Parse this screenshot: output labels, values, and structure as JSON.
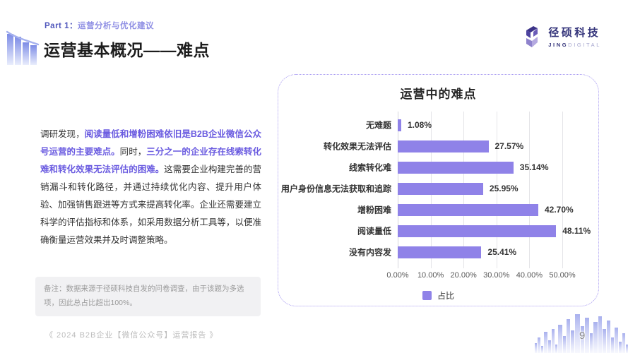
{
  "header": {
    "kicker_label": "Part 1：",
    "kicker_text": "运营分析与优化建议",
    "title": "运营基本概况——难点"
  },
  "logo": {
    "name_cn": "径硕科技",
    "name_en_bold": "JING",
    "name_en_light": "DIGITAL"
  },
  "paragraph": {
    "segments": [
      {
        "text": "调研发现，",
        "highlight": false
      },
      {
        "text": "阅读量低和增粉困难依旧是B2B企业微信公众号运营的主要难点。",
        "highlight": true
      },
      {
        "text": "同时，",
        "highlight": false
      },
      {
        "text": "三分之一的企业存在线索转化难和转化效果无法评估的困难。",
        "highlight": true
      },
      {
        "text": "这需要企业构建完善的营销漏斗和转化路径，并通过持续优化内容、提升用户体验、加强销售跟进等方式来提高转化率。企业还需要建立科学的评估指标和体系，如采用数据分析工具等，以便准确衡量运营效果并及时调整策略。",
        "highlight": false
      }
    ]
  },
  "note": {
    "text": "备注：数据来源于径硕科技自发的问卷调查，由于该题为多选项，因此总占比超出100%。"
  },
  "chart_data": {
    "type": "bar",
    "orientation": "horizontal",
    "title": "运营中的难点",
    "categories": [
      "无难题",
      "转化效果无法评估",
      "线索转化难",
      "用户身份信息无法获取和追踪",
      "增粉困难",
      "阅读量低",
      "没有内容发"
    ],
    "values": [
      1.08,
      27.57,
      35.14,
      25.95,
      42.7,
      48.11,
      25.41
    ],
    "value_labels": [
      "1.08%",
      "27.57%",
      "35.14%",
      "25.95%",
      "42.70%",
      "48.11%",
      "25.41%"
    ],
    "x_ticks": [
      "0.00%",
      "10.00%",
      "20.00%",
      "30.00%",
      "40.00%",
      "50.00%"
    ],
    "xlim": [
      0,
      50
    ],
    "grid": true,
    "legend": "占比",
    "legend_position": "bottom",
    "bar_color": "#8F82E8"
  },
  "footer": {
    "report_title": "《 2024 B2B企业【微信公众号】运营报告 》",
    "page_number": "9"
  },
  "colors": {
    "accent_purple": "#6A5BE0",
    "kicker_dark": "#5158BC",
    "kicker_light": "#8F8FE4",
    "bar": "#8F82E8",
    "card_border": "#A89BF2"
  }
}
